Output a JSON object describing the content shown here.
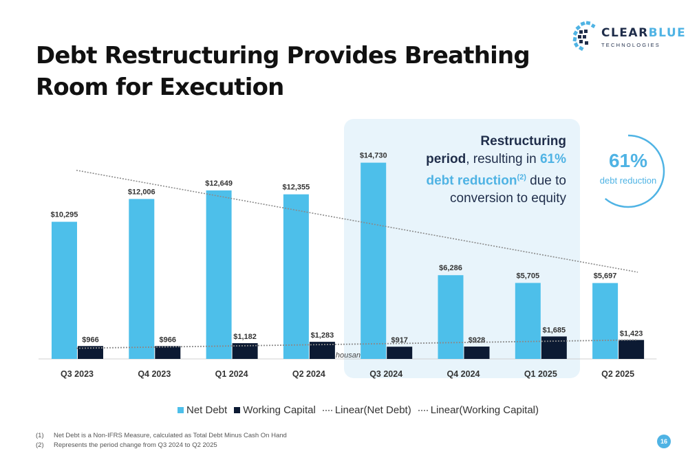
{
  "slide": {
    "title_line1": "Debt Restructuring Provides Breathing",
    "title_line2": "Room for Execution",
    "page_number": "16"
  },
  "logo": {
    "name_dark": "CLEAR",
    "name_light": "BLUE",
    "sub": "TECHNOLOGIES"
  },
  "callout": {
    "line1": "Restructuring",
    "line2_bold": "period",
    "line2_rest": ", resulting in ",
    "line2_pct": "61%",
    "line3_acc": "debt reduction",
    "line3_sup": "(2)",
    "line3_rest": " due to",
    "line4": "conversion to equity"
  },
  "ring": {
    "value": "61%",
    "label": "debt reduction"
  },
  "legend": {
    "net_debt": "Net Debt",
    "working_capital": "Working Capital",
    "linear_net_debt": "Linear(Net Debt)",
    "linear_working_capital": "Linear(Working Capital)"
  },
  "footnotes": [
    {
      "num": "(1)",
      "text": "Net Debt is a Non-IFRS Measure, calculated as Total Debt Minus Cash On Hand"
    },
    {
      "num": "(2)",
      "text": "Represents the period change from Q3 2024 to Q2 2025"
    }
  ],
  "colors": {
    "net_debt": "#4dbfea",
    "working_capital": "#0c1a33",
    "accent": "#4fb3e4",
    "trend": "#8a8a8a"
  },
  "chart_data": {
    "type": "bar",
    "title": "",
    "xlabel": "",
    "ylabel": "",
    "axis_fragment": "housan",
    "categories": [
      "Q3 2023",
      "Q4 2023",
      "Q1 2024",
      "Q2 2024",
      "Q3 2024",
      "Q4 2024",
      "Q1 2025",
      "Q2 2025"
    ],
    "series": [
      {
        "name": "Net Debt",
        "values": [
          10295,
          12006,
          12649,
          12355,
          14730,
          6286,
          5705,
          5697
        ],
        "labels": [
          "$10,295",
          "$12,006",
          "$12,649",
          "$12,355",
          "$14,730",
          "$6,286",
          "$5,705",
          "$5,697"
        ]
      },
      {
        "name": "Working Capital",
        "values": [
          966,
          966,
          1182,
          1283,
          917,
          928,
          1685,
          1423
        ],
        "labels": [
          "$966",
          "$966",
          "$1,182",
          "$1,283",
          "$917",
          "$928",
          "$1,685",
          "$1,423"
        ]
      }
    ],
    "trendlines": [
      {
        "name": "Linear(Net Debt)",
        "start": 14160,
        "end": 6510
      },
      {
        "name": "Linear(Working Capital)",
        "start": 800,
        "end": 1430
      }
    ],
    "ylim": [
      0,
      16000
    ],
    "legend_position": "bottom"
  }
}
